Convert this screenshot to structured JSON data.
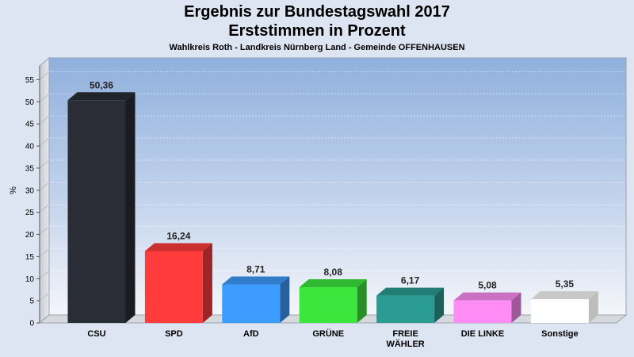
{
  "header": {
    "title": "Ergebnis zur Bundestagswahl 2017",
    "subtitle": "Erststimmen in Prozent",
    "caption": "Wahlkreis Roth - Landkreis Nürnberg Land - Gemeinde OFFENHAUSEN"
  },
  "chart_data": {
    "type": "bar",
    "ylabel": "%",
    "ylim": [
      0,
      58
    ],
    "yticks": [
      0,
      5,
      10,
      15,
      20,
      25,
      30,
      35,
      40,
      45,
      50,
      55
    ],
    "categories": [
      "CSU",
      "SPD",
      "AfD",
      "GRÜNE",
      "FREIE WÄHLER",
      "DIE LINKE",
      "Sonstige"
    ],
    "category_lines": [
      [
        "CSU"
      ],
      [
        "SPD"
      ],
      [
        "AfD"
      ],
      [
        "GRÜNE"
      ],
      [
        "FREIE",
        "WÄHLER"
      ],
      [
        "DIE LINKE"
      ],
      [
        "Sonstige"
      ]
    ],
    "values": [
      50.36,
      16.24,
      8.71,
      8.08,
      6.17,
      5.08,
      5.35
    ],
    "value_labels": [
      "50,36",
      "16,24",
      "8,71",
      "8,08",
      "6,17",
      "5,08",
      "5,35"
    ],
    "colors": [
      "#2a2d36",
      "#ff3b3b",
      "#3d9cff",
      "#3de63d",
      "#2a9c94",
      "#ff8cf5",
      "#ffffff"
    ],
    "grid": true,
    "legend": "none"
  }
}
